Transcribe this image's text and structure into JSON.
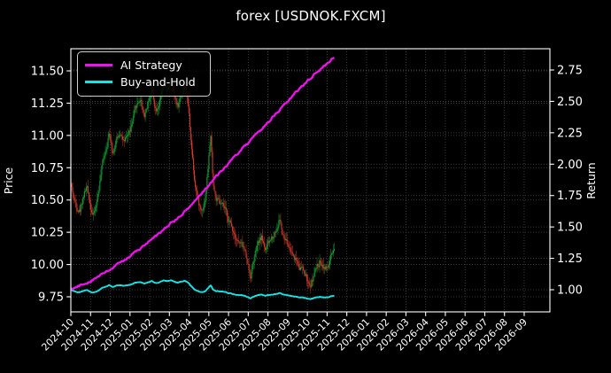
{
  "title": "forex [USDNOK.FXCM]",
  "legend": {
    "position": "upper left",
    "items": [
      {
        "label": "AI Strategy",
        "color": "#ee12ee"
      },
      {
        "label": "Buy-and-Hold",
        "color": "#14e6e6"
      }
    ]
  },
  "axes": {
    "left_label": "Price",
    "right_label": "Return",
    "price_ticks": [
      "9.75",
      "10.00",
      "10.25",
      "10.50",
      "10.75",
      "11.00",
      "11.25",
      "11.50"
    ],
    "return_ticks": [
      "1.00",
      "1.25",
      "1.50",
      "1.75",
      "2.00",
      "2.25",
      "2.50",
      "2.75"
    ],
    "x_ticks": [
      "2024-10",
      "2024-11",
      "2024-12",
      "2025-01",
      "2025-02",
      "2025-03",
      "2025-04",
      "2025-05",
      "2025-06",
      "2025-07",
      "2025-08",
      "2025-09",
      "2025-10",
      "2025-11",
      "2025-12",
      "2026-01",
      "2026-02",
      "2026-03",
      "2026-04",
      "2026-05",
      "2026-06",
      "2026-07",
      "2026-08",
      "2026-09"
    ]
  },
  "chart_data": {
    "type": "candlestick+line",
    "title": "forex [USDNOK.FXCM]",
    "xlabel": "",
    "ylabel_left": "Price",
    "ylabel_right": "Return",
    "x_unit": "months since 2024-10-01",
    "xlim": [
      "2024-10",
      "2026-10"
    ],
    "price_ylim": [
      9.63,
      11.67
    ],
    "return_ylim": [
      0.82,
      2.92
    ],
    "grid": true,
    "data_span_months": 13.4,
    "trading_days_per_month": 21.7,
    "n_candles": 291,
    "first_candle_open": 10.93,
    "initial_price": 10.62,
    "price_close_keyframes": [
      [
        0.0,
        10.62
      ],
      [
        0.2,
        10.48
      ],
      [
        0.45,
        10.42
      ],
      [
        0.62,
        10.53
      ],
      [
        0.8,
        10.6
      ],
      [
        1.0,
        10.46
      ],
      [
        1.15,
        10.38
      ],
      [
        1.32,
        10.48
      ],
      [
        1.5,
        10.67
      ],
      [
        1.65,
        10.82
      ],
      [
        1.82,
        10.94
      ],
      [
        1.97,
        11.03
      ],
      [
        2.12,
        10.88
      ],
      [
        2.32,
        10.96
      ],
      [
        2.52,
        11.04
      ],
      [
        2.72,
        10.93
      ],
      [
        2.92,
        11.01
      ],
      [
        3.12,
        11.09
      ],
      [
        3.32,
        11.22
      ],
      [
        3.52,
        11.29
      ],
      [
        3.72,
        11.16
      ],
      [
        3.92,
        11.26
      ],
      [
        4.1,
        11.36
      ],
      [
        4.3,
        11.21
      ],
      [
        4.52,
        11.27
      ],
      [
        4.72,
        11.39
      ],
      [
        4.9,
        11.33
      ],
      [
        5.06,
        11.43
      ],
      [
        5.22,
        11.31
      ],
      [
        5.42,
        11.23
      ],
      [
        5.62,
        11.33
      ],
      [
        5.8,
        11.39
      ],
      [
        5.96,
        11.21
      ],
      [
        6.1,
        10.96
      ],
      [
        6.26,
        10.69
      ],
      [
        6.46,
        10.49
      ],
      [
        6.62,
        10.41
      ],
      [
        6.82,
        10.52
      ],
      [
        7.0,
        10.82
      ],
      [
        7.09,
        11.01
      ],
      [
        7.22,
        10.63
      ],
      [
        7.36,
        10.51
      ],
      [
        7.56,
        10.46
      ],
      [
        7.76,
        10.43
      ],
      [
        7.96,
        10.36
      ],
      [
        8.16,
        10.29
      ],
      [
        8.36,
        10.23
      ],
      [
        8.56,
        10.16
      ],
      [
        8.76,
        10.13
      ],
      [
        8.96,
        10.03
      ],
      [
        9.1,
        9.91
      ],
      [
        9.26,
        10.03
      ],
      [
        9.46,
        10.13
      ],
      [
        9.66,
        10.21
      ],
      [
        9.86,
        10.13
      ],
      [
        10.06,
        10.16
      ],
      [
        10.26,
        10.23
      ],
      [
        10.46,
        10.29
      ],
      [
        10.6,
        10.36
      ],
      [
        10.76,
        10.21
      ],
      [
        10.96,
        10.16
      ],
      [
        11.16,
        10.11
      ],
      [
        11.36,
        10.06
      ],
      [
        11.56,
        10.01
      ],
      [
        11.76,
        9.96
      ],
      [
        11.96,
        9.89
      ],
      [
        12.1,
        9.81
      ],
      [
        12.26,
        9.89
      ],
      [
        12.46,
        9.97
      ],
      [
        12.66,
        10.03
      ],
      [
        12.86,
        9.99
      ],
      [
        13.02,
        9.96
      ],
      [
        13.18,
        10.05
      ],
      [
        13.4,
        10.08
      ]
    ],
    "series": [
      {
        "name": "AI Strategy",
        "axis": "return",
        "color": "#ee12ee",
        "final_return": 2.86,
        "return_keyframes": [
          [
            0.0,
            1.0
          ],
          [
            0.5,
            1.035
          ],
          [
            1.0,
            1.07
          ],
          [
            1.5,
            1.115
          ],
          [
            2.0,
            1.16
          ],
          [
            2.5,
            1.215
          ],
          [
            3.0,
            1.27
          ],
          [
            3.5,
            1.325
          ],
          [
            4.0,
            1.385
          ],
          [
            4.5,
            1.45
          ],
          [
            5.0,
            1.52
          ],
          [
            5.5,
            1.578
          ],
          [
            6.0,
            1.655
          ],
          [
            6.5,
            1.745
          ],
          [
            7.0,
            1.835
          ],
          [
            7.5,
            1.925
          ],
          [
            8.0,
            2.005
          ],
          [
            8.5,
            2.09
          ],
          [
            9.0,
            2.17
          ],
          [
            9.5,
            2.25
          ],
          [
            10.0,
            2.335
          ],
          [
            10.5,
            2.415
          ],
          [
            11.0,
            2.5
          ],
          [
            11.5,
            2.585
          ],
          [
            12.0,
            2.665
          ],
          [
            12.5,
            2.735
          ],
          [
            13.0,
            2.8
          ],
          [
            13.4,
            2.86
          ]
        ]
      },
      {
        "name": "Buy-and-Hold",
        "axis": "return",
        "color": "#14e6e6",
        "derivation": "close / first close",
        "final_return": 0.95
      }
    ],
    "candle_up_color": "#14a437",
    "candle_down_color": "#d6392b",
    "price_high": 11.47,
    "price_low": 9.77
  },
  "colors": {
    "background": "#000000",
    "text": "#ffffff",
    "grid": "#4a4a4a",
    "spine": "#ffffff",
    "magenta_line": "#ee12ee",
    "cyan_line": "#14e6e6",
    "candle_up": "#14a437",
    "candle_down": "#d6392b"
  }
}
